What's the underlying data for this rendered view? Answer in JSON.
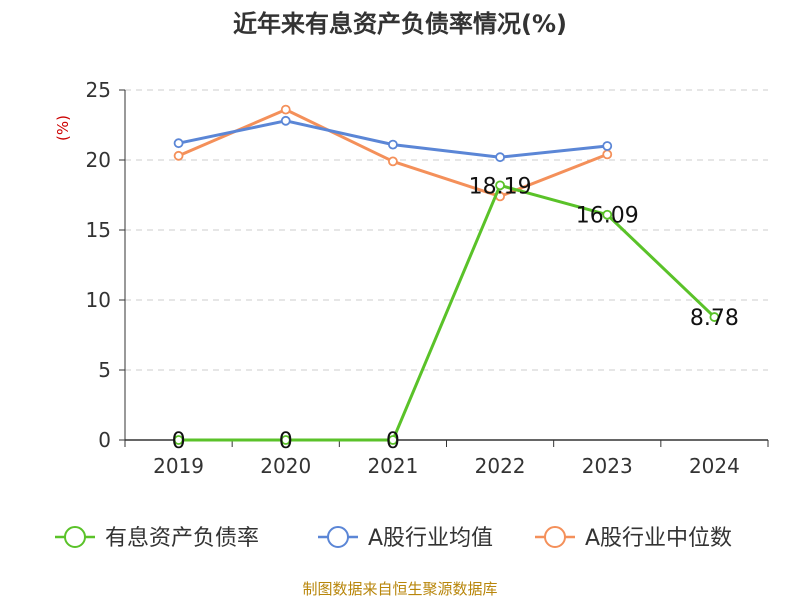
{
  "chart_data": {
    "type": "line",
    "title": "近年来有息资产负债率情况(%)",
    "ylabel": "(%)",
    "categories": [
      "2019",
      "2020",
      "2021",
      "2022",
      "2023",
      "2024"
    ],
    "ylim": [
      0,
      25
    ],
    "yticks": [
      "0",
      "5",
      "10",
      "15",
      "20",
      "25"
    ],
    "grid": true,
    "legend_position": "bottom",
    "series": [
      {
        "name": "有息资产负债率",
        "color": "#5ac229",
        "values": [
          0,
          0,
          0,
          18.19,
          16.09,
          8.78
        ],
        "labels": [
          "0",
          "0",
          "0",
          "18.19",
          "16.09",
          "8.78"
        ]
      },
      {
        "name": "A股行业均值",
        "color": "#5b86d6",
        "values": [
          21.2,
          22.8,
          21.1,
          20.2,
          21.0,
          null
        ]
      },
      {
        "name": "A股行业中位数",
        "color": "#f4905a",
        "values": [
          20.3,
          23.6,
          19.9,
          17.4,
          20.4,
          null
        ]
      }
    ]
  },
  "source": "制图数据来自恒生聚源数据库"
}
